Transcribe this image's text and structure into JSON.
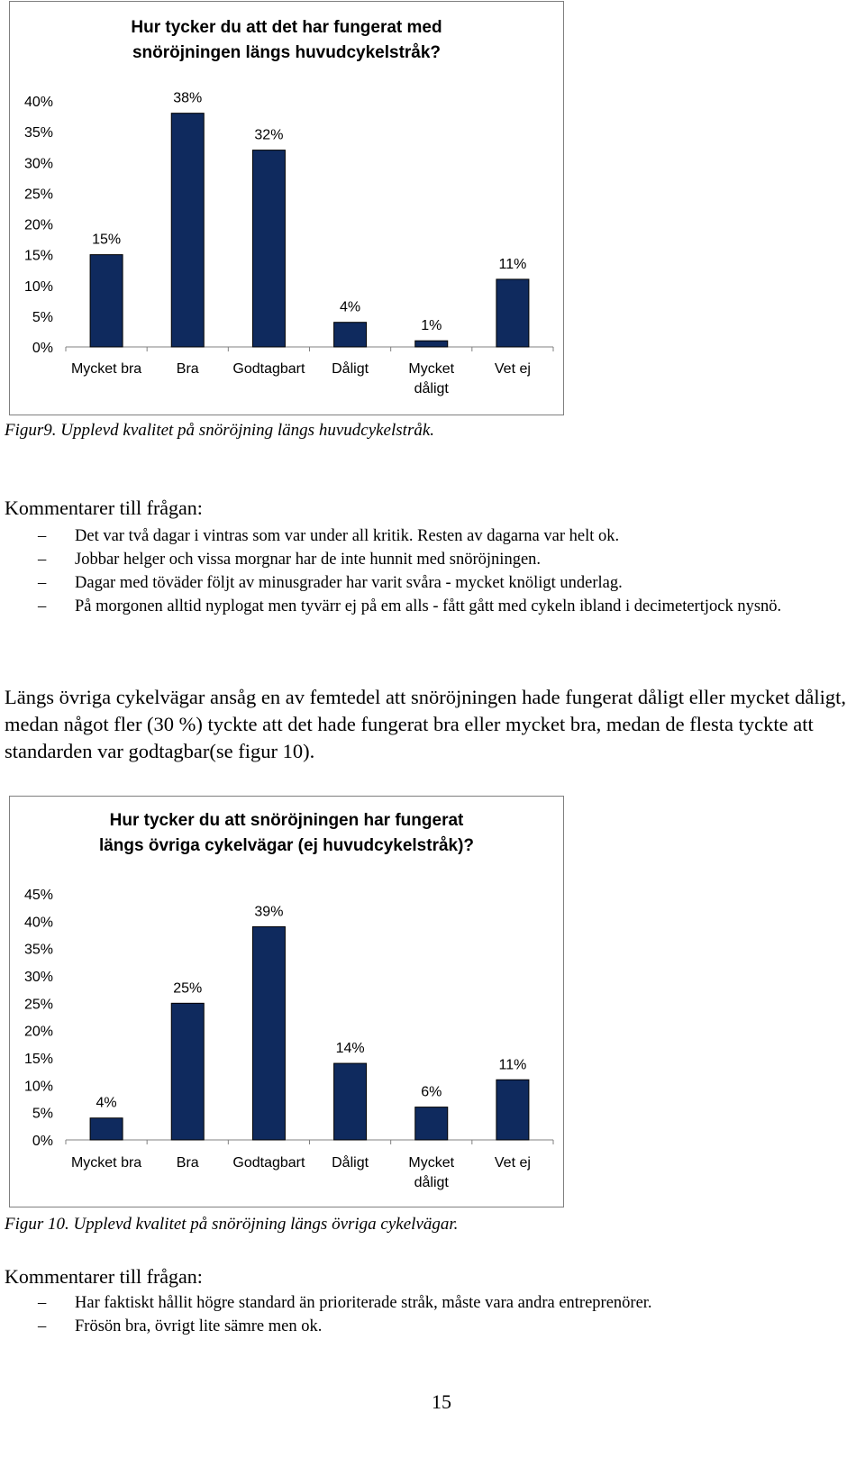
{
  "chart1": {
    "title_line1": "Hur tycker du att det har fungerat med",
    "title_line2": "snöröjningen längs huvudcykelstråk?"
  },
  "caption1": "Figur9. Upplevd kvalitet på snöröjning längs huvudcykelstråk.",
  "comments1": {
    "heading": "Kommentarer till frågan:",
    "items": [
      "Det var två dagar i vintras som var under all kritik. Resten av dagarna var helt ok.",
      "Jobbar helger och vissa morgnar har de inte hunnit med snöröjningen.",
      "Dagar med töväder följt av minusgrader har varit svåra - mycket knöligt underlag.",
      "På morgonen alltid nyplogat men tyvärr ej på em alls - fått gått med cykeln ibland i decimetertjock nysnö."
    ]
  },
  "paragraph": "Längs övriga cykelvägar ansåg en av femtedel att snöröjningen hade fungerat dåligt eller mycket dåligt, medan något fler (30 %) tyckte att det hade fungerat bra eller mycket bra, medan de flesta tyckte att standarden var godtagbar(se figur 10).",
  "chart2": {
    "title_line1": "Hur tycker du att snöröjningen har fungerat",
    "title_line2": "längs övriga cykelvägar (ej huvudcykelstråk)?"
  },
  "caption2": "Figur 10. Upplevd kvalitet på snöröjning längs övriga cykelvägar.",
  "comments2": {
    "heading": "Kommentarer till frågan:",
    "items": [
      "Har faktiskt hållit högre standard än prioriterade stråk, måste vara andra entreprenörer.",
      "Frösön bra, övrigt lite sämre men ok."
    ]
  },
  "page_number": "15",
  "dash": "–",
  "chart_data": [
    {
      "type": "bar",
      "title": "Hur tycker du att det har fungerat med snöröjningen längs huvudcykelstråk?",
      "categories": [
        "Mycket bra",
        "Bra",
        "Godtagbart",
        "Dåligt",
        "Mycket dåligt",
        "Vet ej"
      ],
      "category_lines": [
        [
          "Mycket bra"
        ],
        [
          "Bra"
        ],
        [
          "Godtagbart"
        ],
        [
          "Dåligt"
        ],
        [
          "Mycket",
          "dåligt"
        ],
        [
          "Vet ej"
        ]
      ],
      "values": [
        15,
        38,
        32,
        4,
        1,
        11
      ],
      "value_labels": [
        "15%",
        "38%",
        "32%",
        "4%",
        "1%",
        "11%"
      ],
      "ylim": [
        0,
        40
      ],
      "yticks": [
        "0%",
        "5%",
        "10%",
        "15%",
        "20%",
        "25%",
        "30%",
        "35%",
        "40%"
      ],
      "bar_color": "#0f2a5e",
      "grid": false,
      "legend": "none"
    },
    {
      "type": "bar",
      "title": "Hur tycker du att snöröjningen har fungerat längs övriga cykelvägar (ej huvudcykelstråk)?",
      "categories": [
        "Mycket bra",
        "Bra",
        "Godtagbart",
        "Dåligt",
        "Mycket dåligt",
        "Vet ej"
      ],
      "category_lines": [
        [
          "Mycket bra"
        ],
        [
          "Bra"
        ],
        [
          "Godtagbart"
        ],
        [
          "Dåligt"
        ],
        [
          "Mycket",
          "dåligt"
        ],
        [
          "Vet ej"
        ]
      ],
      "values": [
        4,
        25,
        39,
        14,
        6,
        11
      ],
      "value_labels": [
        "4%",
        "25%",
        "39%",
        "14%",
        "6%",
        "11%"
      ],
      "ylim": [
        0,
        45
      ],
      "yticks": [
        "0%",
        "5%",
        "10%",
        "15%",
        "20%",
        "25%",
        "30%",
        "35%",
        "40%",
        "45%"
      ],
      "bar_color": "#0f2a5e",
      "grid": false,
      "legend": "none"
    }
  ]
}
